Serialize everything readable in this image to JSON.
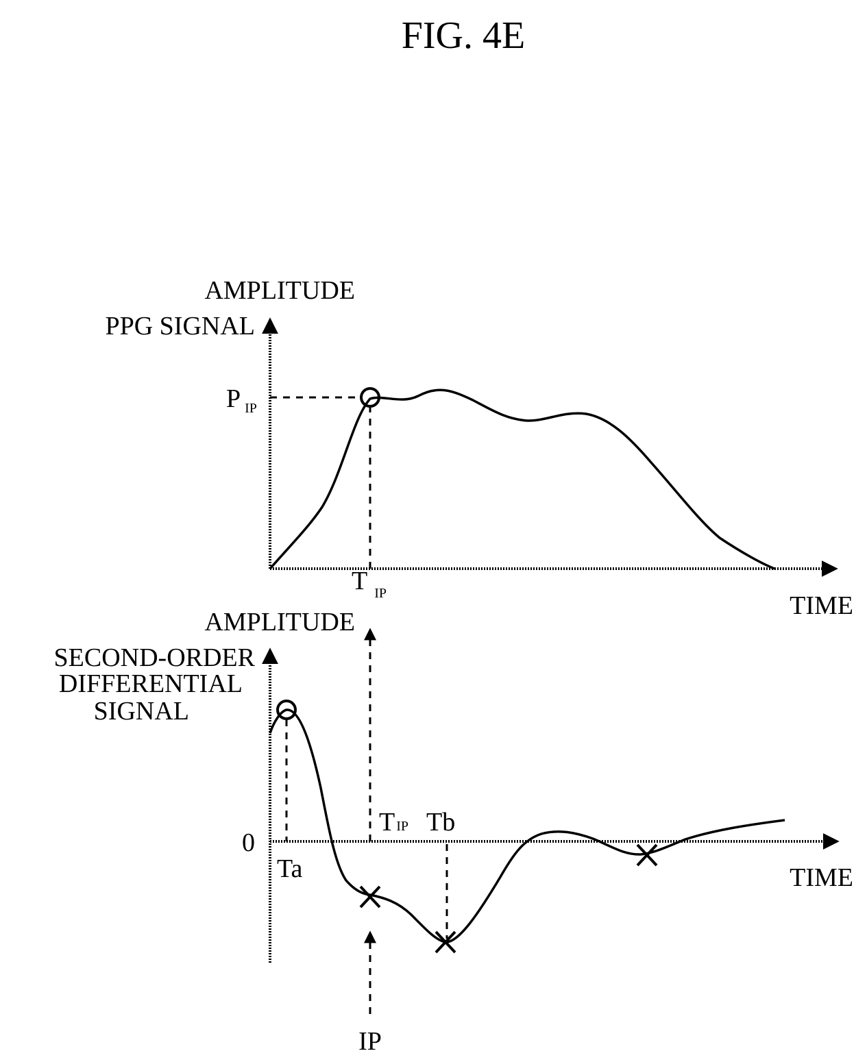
{
  "figure_title": "FIG. 4E",
  "top_graph": {
    "y_label_line1": "AMPLITUDE",
    "y_label_line2": "PPG SIGNAL",
    "peak_label_main": "P",
    "peak_label_sub": "IP",
    "x_tick_main": "T",
    "x_tick_sub": "IP",
    "x_label": "TIME"
  },
  "bottom_graph": {
    "y_label_line0": "AMPLITUDE",
    "y_label_line1": "SECOND-ORDER",
    "y_label_line2": "DIFFERENTIAL",
    "y_label_line3": "SIGNAL",
    "zero_label": "0",
    "ta_label": "Ta",
    "tip_main": "T",
    "tip_sub": "IP",
    "tb_label": "Tb",
    "x_label": "TIME",
    "ip_label": "IP"
  }
}
